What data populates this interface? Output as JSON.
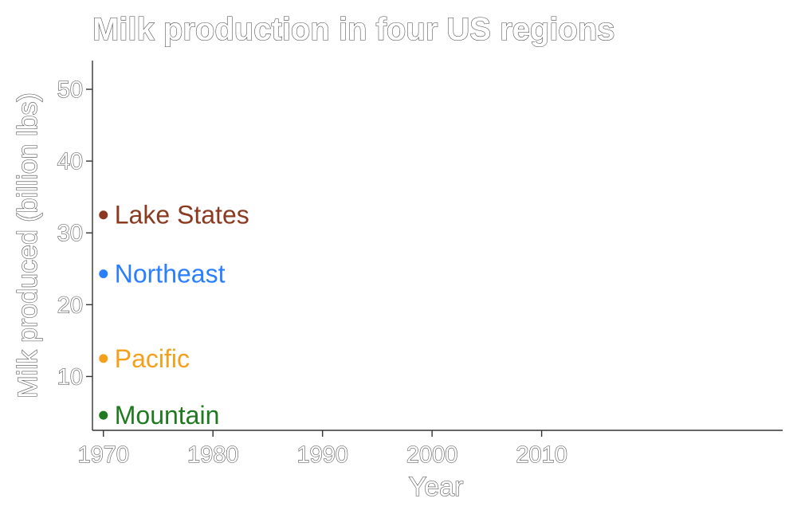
{
  "chart_data": {
    "type": "scatter",
    "title": "Milk production in four US regions",
    "xlabel": "Year",
    "ylabel": "Milk produced (billion lbs)",
    "xlim": [
      1969,
      2032
    ],
    "ylim": [
      2.5,
      54
    ],
    "x_ticks": [
      1970,
      1980,
      1990,
      2000,
      2010
    ],
    "y_ticks": [
      10,
      20,
      30,
      40,
      50
    ],
    "grid": false,
    "legend": "direct labels beside points",
    "series": [
      {
        "name": "Lake States",
        "color": "#8B3A1F",
        "x": [
          1970
        ],
        "y": [
          32.5
        ]
      },
      {
        "name": "Northeast",
        "color": "#2A7FFF",
        "x": [
          1970
        ],
        "y": [
          24.3
        ]
      },
      {
        "name": "Pacific",
        "color": "#F5A01A",
        "x": [
          1970
        ],
        "y": [
          12.5
        ]
      },
      {
        "name": "Mountain",
        "color": "#1F7A1F",
        "x": [
          1970
        ],
        "y": [
          4.6
        ]
      }
    ]
  }
}
